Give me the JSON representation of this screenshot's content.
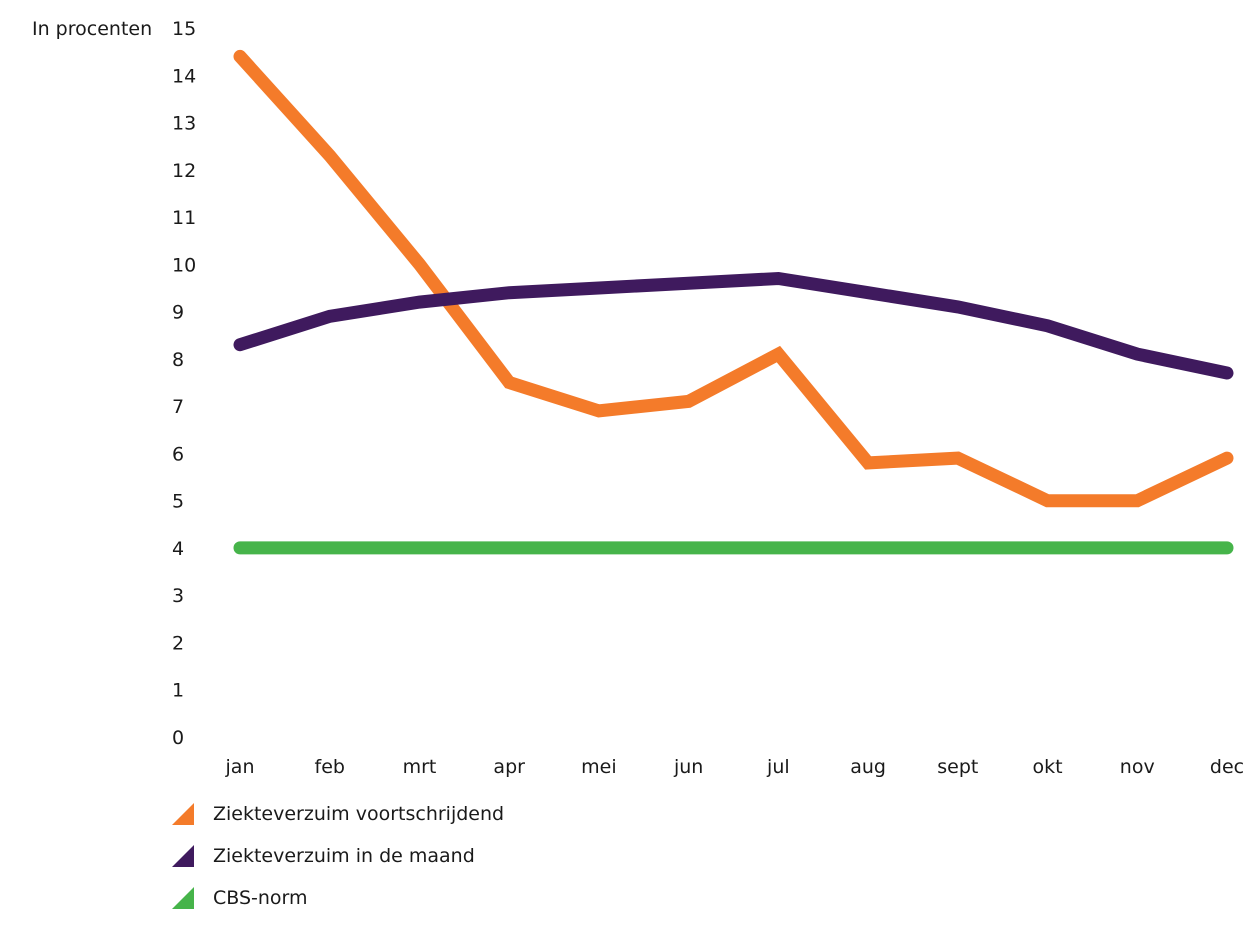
{
  "chart_data": {
    "type": "line",
    "ylabel": "In procenten",
    "ylim": [
      0,
      15
    ],
    "yticks": [
      0,
      1,
      2,
      3,
      4,
      5,
      6,
      7,
      8,
      9,
      10,
      11,
      12,
      13,
      14,
      15
    ],
    "categories": [
      "jan",
      "feb",
      "mrt",
      "apr",
      "mei",
      "jun",
      "jul",
      "aug",
      "sept",
      "okt",
      "nov",
      "dec"
    ],
    "grid": false,
    "legend_position": "bottom-left",
    "series": [
      {
        "name": "Ziekteverzuim voortschrijdend",
        "color": "#f47b2a",
        "values": [
          14.4,
          12.3,
          10.0,
          7.5,
          6.9,
          7.1,
          8.1,
          5.8,
          5.9,
          5.0,
          5.0,
          5.9
        ]
      },
      {
        "name": "Ziekteverzuim in de maand",
        "color": "#3f1a5e",
        "values": [
          8.3,
          8.9,
          9.2,
          9.4,
          9.5,
          9.6,
          9.7,
          9.4,
          9.1,
          8.7,
          8.1,
          7.7
        ]
      },
      {
        "name": "CBS-norm",
        "color": "#46b44a",
        "values": [
          4,
          4,
          4,
          4,
          4,
          4,
          4,
          4,
          4,
          4,
          4,
          4
        ]
      }
    ]
  }
}
